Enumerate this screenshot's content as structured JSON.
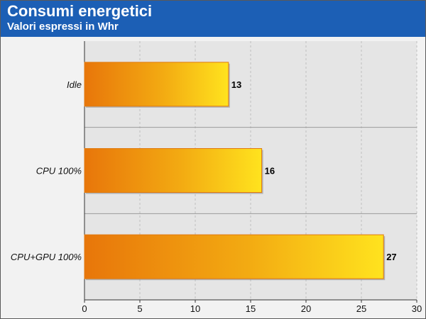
{
  "colors": {
    "header": "#1c5fb5",
    "header_text": "#ffffff",
    "plot_bg": "#e5e5e5",
    "grid": "#bfbfbf",
    "bar_start": "#e8760a",
    "bar_end": "#ffe31e"
  },
  "chart_data": {
    "type": "bar",
    "orientation": "horizontal",
    "title": "Consumi energetici",
    "subtitle": "Valori espressi in Whr",
    "categories": [
      "Idle",
      "CPU 100%",
      "CPU+GPU 100%"
    ],
    "values": [
      13,
      16,
      27
    ],
    "xlim": [
      0,
      30
    ],
    "xticks": [
      0,
      5,
      10,
      15,
      20,
      25,
      30
    ],
    "xlabel": "",
    "ylabel": "",
    "grid": true,
    "legend": "none"
  }
}
